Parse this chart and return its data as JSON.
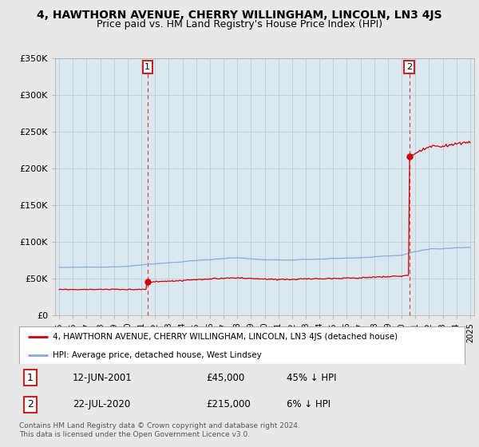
{
  "title": "4, HAWTHORN AVENUE, CHERRY WILLINGHAM, LINCOLN, LN3 4JS",
  "subtitle": "Price paid vs. HM Land Registry's House Price Index (HPI)",
  "ylim": [
    0,
    350000
  ],
  "yticks": [
    0,
    50000,
    100000,
    150000,
    200000,
    250000,
    300000,
    350000
  ],
  "ytick_labels": [
    "£0",
    "£50K",
    "£100K",
    "£150K",
    "£200K",
    "£250K",
    "£300K",
    "£350K"
  ],
  "purchase1_date": 2001.45,
  "purchase1_price": 45000,
  "purchase1_label": "1",
  "purchase2_date": 2020.55,
  "purchase2_price": 215000,
  "purchase2_label": "2",
  "legend_line1": "4, HAWTHORN AVENUE, CHERRY WILLINGHAM, LINCOLN, LN3 4JS (detached house)",
  "legend_line2": "HPI: Average price, detached house, West Lindsey",
  "hpi_color": "#88aadd",
  "price_color": "#cc0000",
  "vline_color": "#dd4444",
  "background_color": "#e8e8e8",
  "plot_bg_color": "#dce8f0",
  "title_fontsize": 10,
  "subtitle_fontsize": 9,
  "footer": "Contains HM Land Registry data © Crown copyright and database right 2024.\nThis data is licensed under the Open Government Licence v3.0."
}
